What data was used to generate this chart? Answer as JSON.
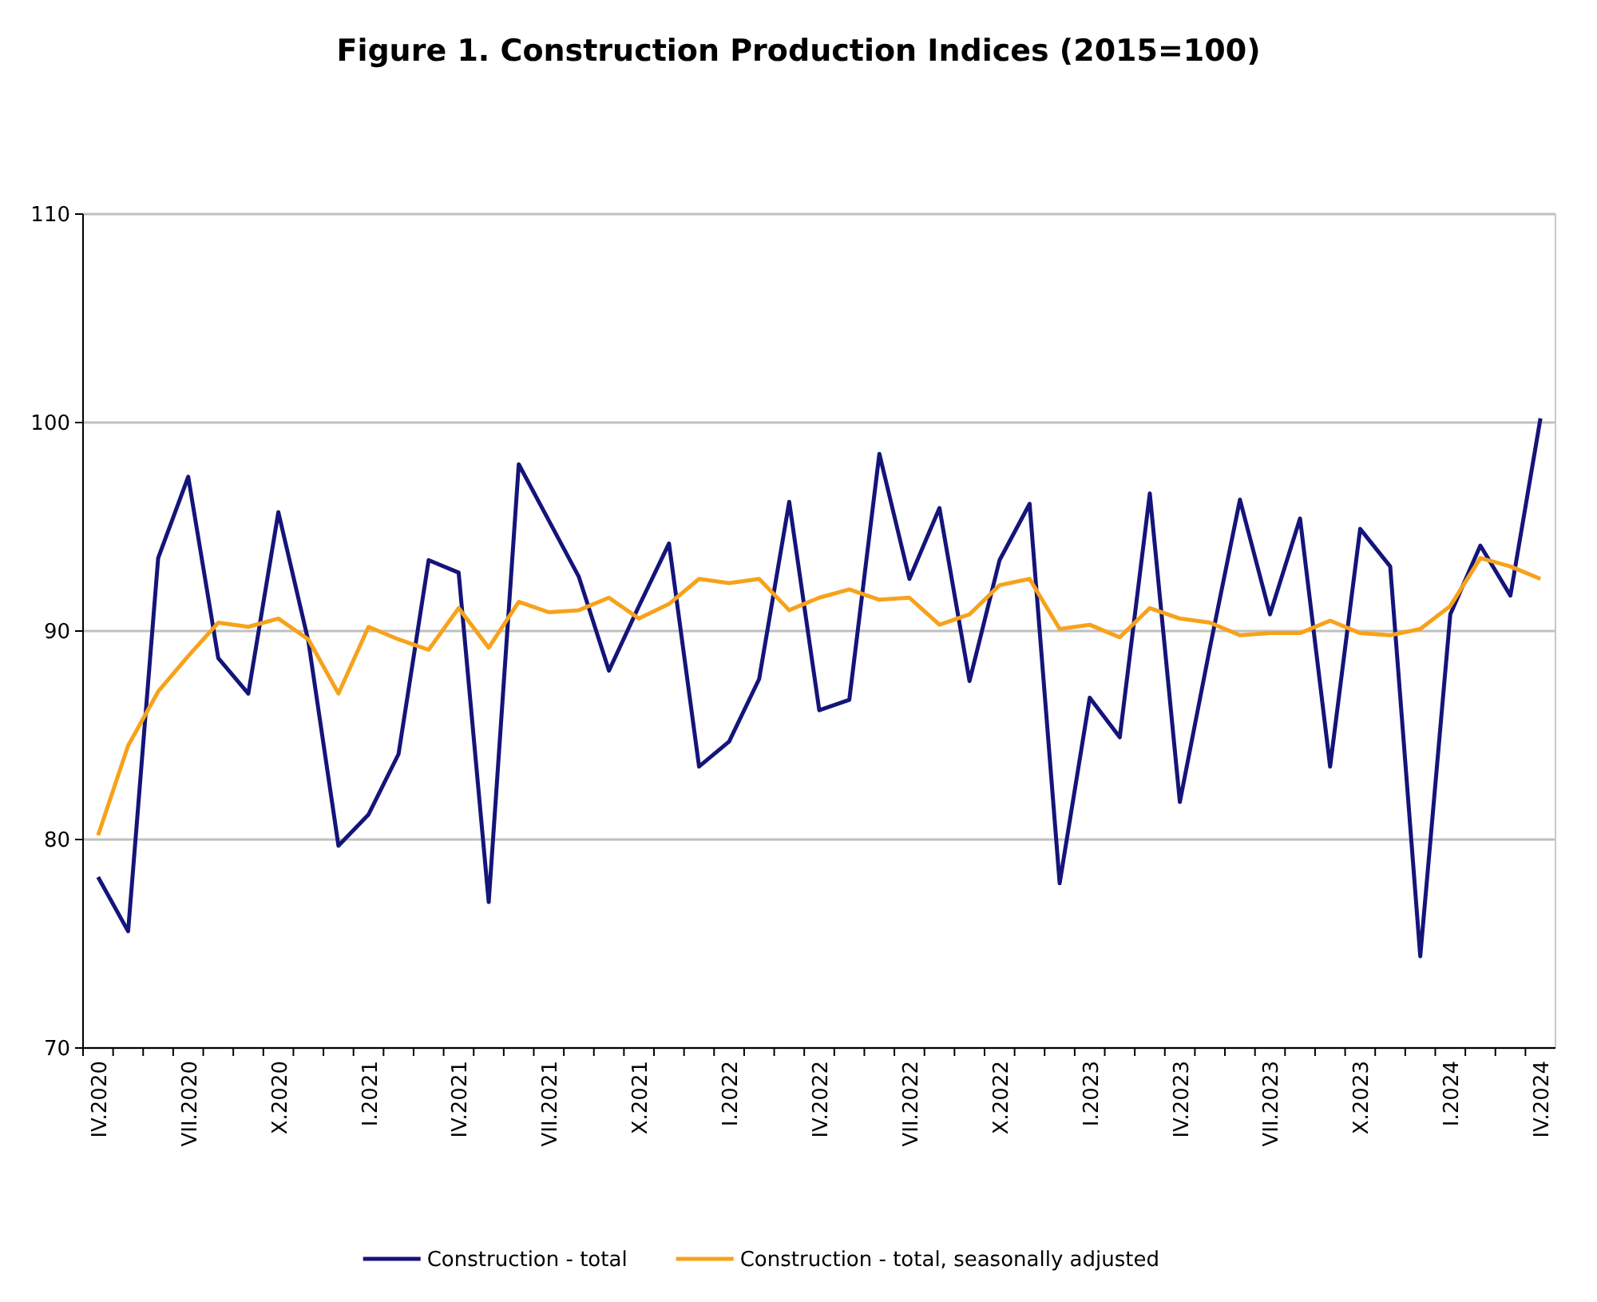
{
  "chart_data": {
    "type": "line",
    "title": "Figure 1. Construction Production Indices (2015=100)",
    "categories": [
      "IV.2020",
      null,
      null,
      "VII.2020",
      null,
      null,
      "X.2020",
      null,
      null,
      "I.2021",
      null,
      null,
      "IV.2021",
      null,
      null,
      "VII.2021",
      null,
      null,
      "X.2021",
      null,
      null,
      "I.2022",
      null,
      null,
      "IV.2022",
      null,
      null,
      "VII.2022",
      null,
      null,
      "X.2022",
      null,
      null,
      "I.2023",
      null,
      null,
      "IV.2023",
      null,
      null,
      "VII.2023",
      null,
      null,
      "X.2023",
      null,
      null,
      "I.2024",
      null,
      null,
      "IV.2024"
    ],
    "series": [
      {
        "name": "Construction - total",
        "color": "#14147a",
        "values": [
          78.2,
          75.6,
          93.5,
          97.4,
          88.7,
          87.0,
          95.7,
          89.5,
          79.7,
          81.2,
          84.1,
          93.4,
          92.8,
          77.0,
          98.0,
          95.3,
          92.6,
          88.1,
          91.2,
          94.2,
          83.5,
          84.7,
          87.7,
          96.2,
          86.2,
          86.7,
          98.5,
          92.5,
          95.9,
          87.6,
          93.4,
          96.1,
          77.9,
          86.8,
          84.9,
          96.6,
          81.8,
          89.2,
          96.3,
          90.8,
          95.4,
          83.5,
          94.9,
          93.1,
          74.4,
          90.8,
          94.1,
          91.7,
          100.2
        ]
      },
      {
        "name": "Construction - total, seasonally adjusted",
        "color": "#f7a21b",
        "values": [
          80.2,
          84.5,
          87.1,
          88.8,
          90.4,
          90.2,
          90.6,
          89.6,
          87.0,
          90.2,
          89.6,
          89.1,
          91.1,
          89.2,
          91.4,
          90.9,
          91.0,
          91.6,
          90.6,
          91.3,
          92.5,
          92.3,
          92.5,
          91.0,
          91.6,
          92.0,
          91.5,
          91.6,
          90.3,
          90.8,
          92.2,
          92.5,
          90.1,
          90.3,
          89.7,
          91.1,
          90.6,
          90.4,
          89.8,
          89.9,
          89.9,
          90.5,
          89.9,
          89.8,
          90.1,
          91.2,
          93.5,
          93.1,
          92.5
        ]
      }
    ],
    "ylim": [
      70,
      110
    ],
    "yticks": [
      70,
      80,
      90,
      100,
      110
    ],
    "grid": "y",
    "legend": "bottom",
    "marker": "none",
    "line_style": "solid"
  }
}
